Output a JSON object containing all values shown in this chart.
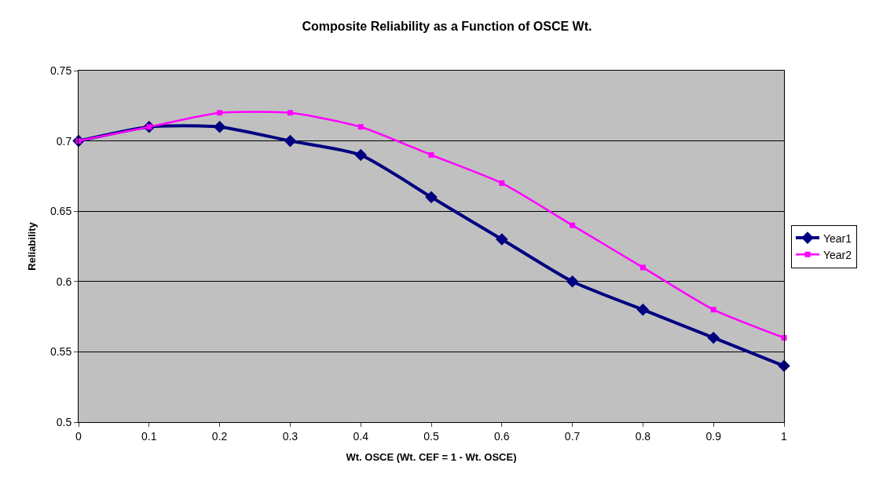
{
  "chart_data": {
    "type": "line",
    "title": "Composite Reliability as a Function of OSCE Wt.",
    "xlabel": "Wt. OSCE (Wt. CEF = 1 - Wt. OSCE)",
    "ylabel": "Reliability",
    "x": [
      0,
      0.1,
      0.2,
      0.3,
      0.4,
      0.5,
      0.6,
      0.7,
      0.8,
      0.9,
      1
    ],
    "series": [
      {
        "name": "Year1",
        "color": "#000080",
        "marker": "diamond",
        "values": [
          0.7,
          0.71,
          0.71,
          0.7,
          0.69,
          0.66,
          0.63,
          0.6,
          0.58,
          0.56,
          0.54
        ]
      },
      {
        "name": "Year2",
        "color": "#ff00ff",
        "marker": "square",
        "values": [
          0.7,
          0.71,
          0.72,
          0.72,
          0.71,
          0.69,
          0.67,
          0.64,
          0.61,
          0.58,
          0.56
        ]
      }
    ],
    "xlim": [
      0,
      1
    ],
    "xticks": [
      0,
      0.1,
      0.2,
      0.3,
      0.4,
      0.5,
      0.6,
      0.7,
      0.8,
      0.9,
      1
    ],
    "ylim": [
      0.5,
      0.75
    ],
    "yticks": [
      0.5,
      0.55,
      0.6,
      0.65,
      0.7,
      0.75
    ],
    "grid": "y",
    "legend": "right",
    "line_style": "solid"
  }
}
